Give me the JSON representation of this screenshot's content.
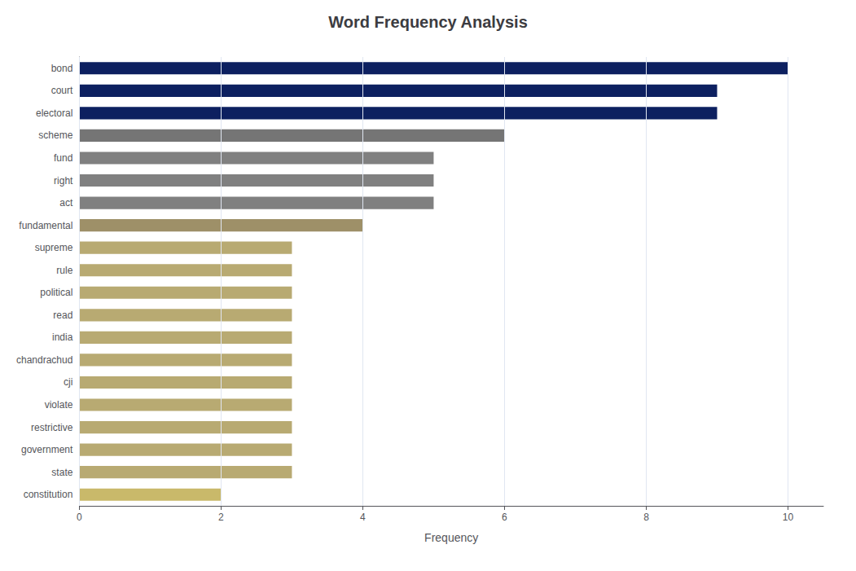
{
  "chart_data": {
    "type": "bar",
    "orientation": "horizontal",
    "title": "Word Frequency Analysis",
    "xlabel": "Frequency",
    "categories": [
      "constitution",
      "state",
      "government",
      "restrictive",
      "violate",
      "cji",
      "chandrachud",
      "india",
      "read",
      "political",
      "rule",
      "supreme",
      "fundamental",
      "act",
      "right",
      "fund",
      "scheme",
      "electoral",
      "court",
      "bond"
    ],
    "values": [
      2,
      3,
      3,
      3,
      3,
      3,
      3,
      3,
      3,
      3,
      3,
      3,
      4,
      5,
      5,
      5,
      6,
      9,
      9,
      10
    ],
    "colors": [
      "#c9b96a",
      "#b8aa72",
      "#b8aa72",
      "#b8aa72",
      "#b8aa72",
      "#b8aa72",
      "#b8aa72",
      "#b8aa72",
      "#b8aa72",
      "#b8aa72",
      "#b8aa72",
      "#b8aa72",
      "#9e9068",
      "#808080",
      "#808080",
      "#808080",
      "#757575",
      "#0d2060",
      "#0d2060",
      "#0d2060"
    ],
    "xlim": [
      0,
      10.5
    ],
    "xticks": [
      0,
      2,
      4,
      6,
      8,
      10
    ],
    "grid": true
  }
}
